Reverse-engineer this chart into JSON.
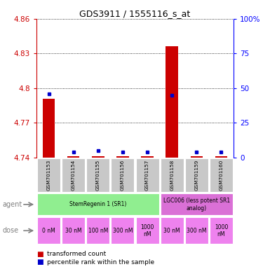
{
  "title": "GDS3911 / 1555116_s_at",
  "samples": [
    "GSM701153",
    "GSM701154",
    "GSM701155",
    "GSM701156",
    "GSM701157",
    "GSM701158",
    "GSM701159",
    "GSM701160"
  ],
  "red_values": [
    4.791,
    4.741,
    4.741,
    4.741,
    4.741,
    4.836,
    4.741,
    4.741
  ],
  "blue_values": [
    46,
    4,
    5,
    4,
    4,
    45,
    4,
    4
  ],
  "ymin": 4.74,
  "ymax": 4.86,
  "yticks": [
    4.74,
    4.77,
    4.8,
    4.83,
    4.86
  ],
  "ytick_labels": [
    "4.74",
    "4.77",
    "4.8",
    "4.83",
    "4.86"
  ],
  "y2min": 0,
  "y2max": 100,
  "y2ticks": [
    0,
    25,
    50,
    75,
    100
  ],
  "y2tick_labels": [
    "0",
    "25",
    "50",
    "75",
    "100%"
  ],
  "agent_row": [
    {
      "label": "StemRegenin 1 (SR1)",
      "start": 0,
      "end": 5,
      "color": "#90EE90"
    },
    {
      "label": "LGC006 (less potent SR1\nanalog)",
      "start": 5,
      "end": 8,
      "color": "#DA70D6"
    }
  ],
  "dose_labels": [
    "0 nM",
    "30 nM",
    "100 nM",
    "300 nM",
    "1000\nnM",
    "30 nM",
    "300 nM",
    "1000\nnM"
  ],
  "dose_color": "#EE82EE",
  "bar_color": "#CC0000",
  "dot_color": "#0000CC",
  "background_color": "#ffffff",
  "sample_bg_color": "#C8C8C8",
  "title_color": "#000000",
  "left_axis_color": "#CC0000",
  "right_axis_color": "#0000FF"
}
